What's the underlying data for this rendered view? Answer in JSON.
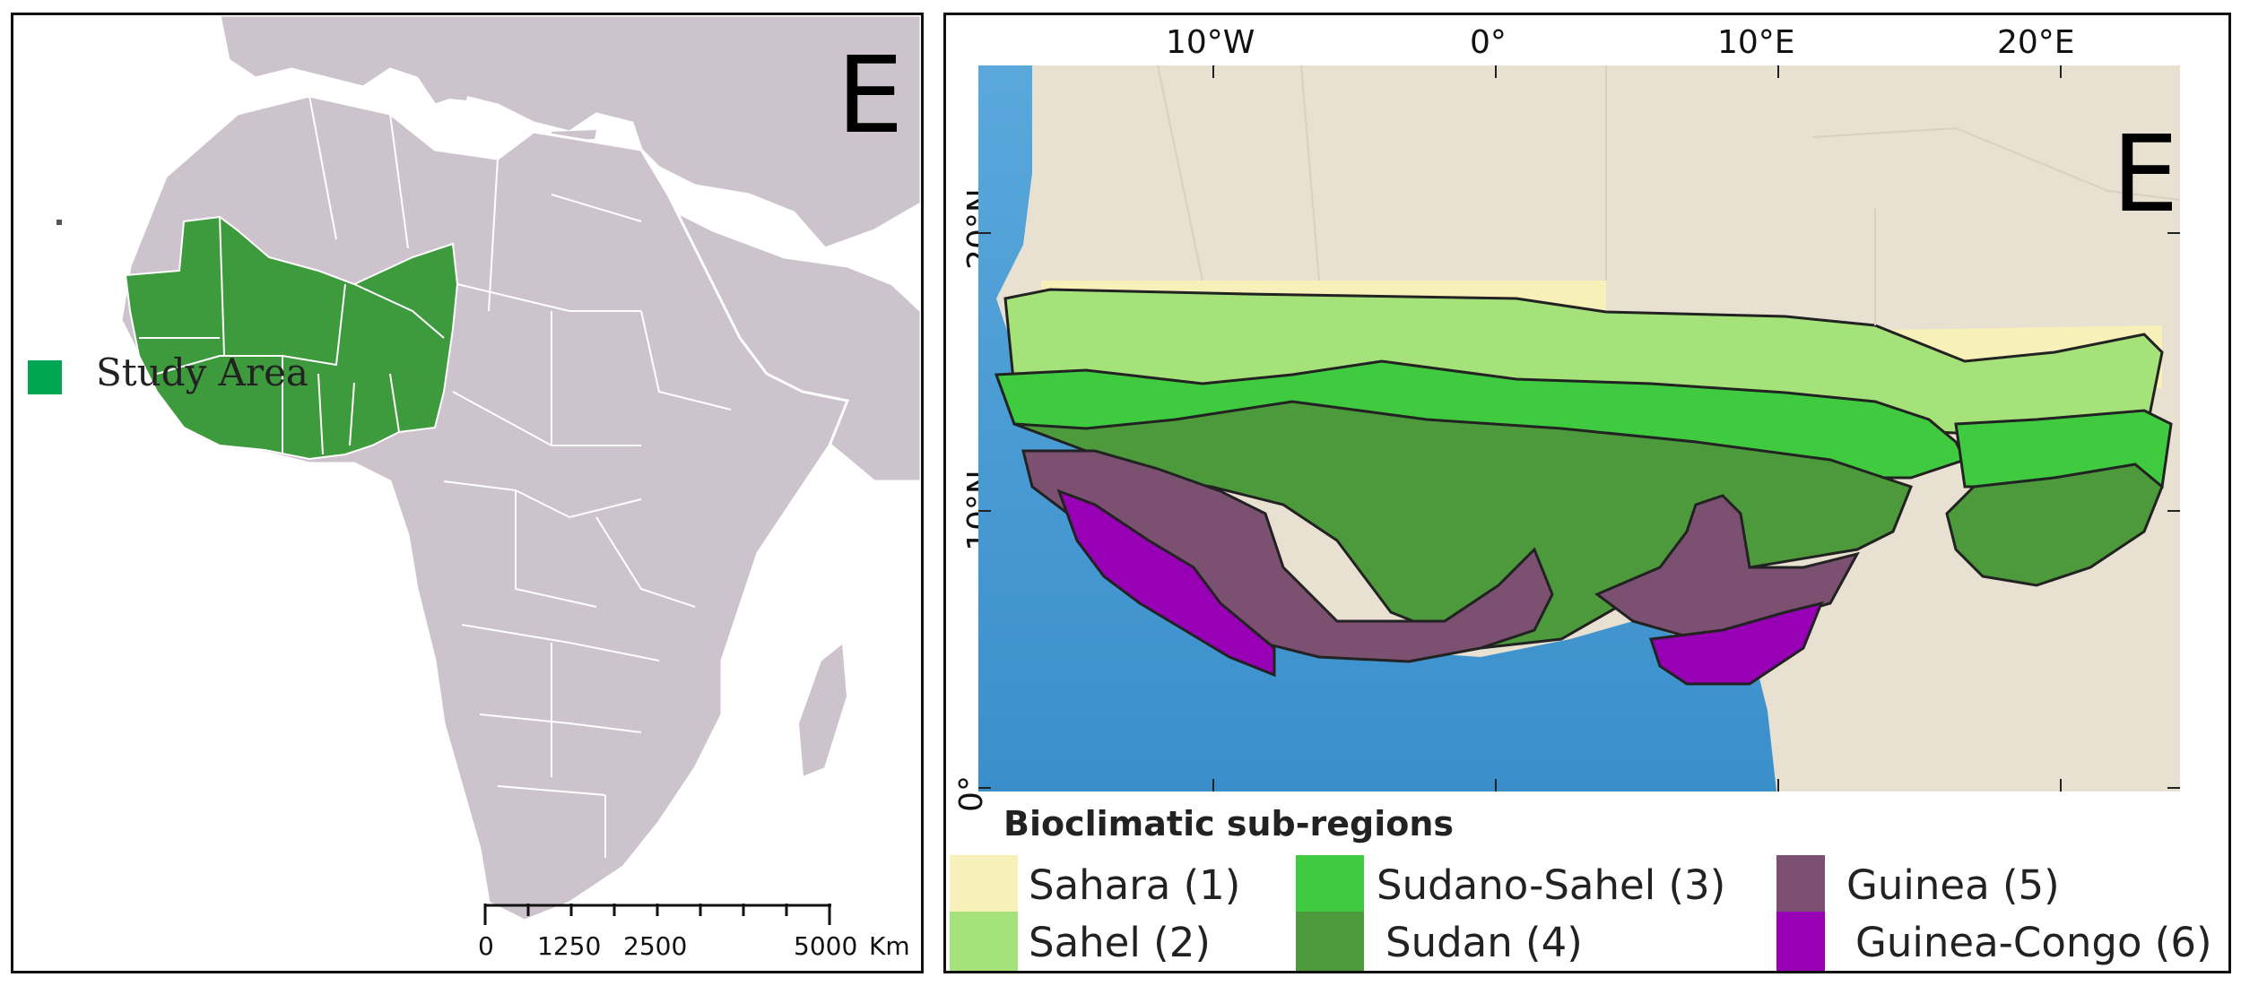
{
  "left_panel": {
    "corner_letter": "E",
    "legend": {
      "label": "Study Area",
      "color": "#00a651"
    },
    "scale_bar": {
      "ticks": [
        "0",
        "1250",
        "2500",
        "5000"
      ],
      "unit": "Km"
    },
    "colors": {
      "land": "#ccc3cc",
      "study_area": "#3d9a3d",
      "borders": "#ffffff"
    }
  },
  "right_panel": {
    "corner_letter": "E",
    "lon_labels": [
      "10°W",
      "0°",
      "10°E",
      "20°E"
    ],
    "lat_labels": [
      "20°N",
      "10°N",
      "0°"
    ],
    "legend_title": "Bioclimatic sub-regions",
    "regions": [
      {
        "label": "Sahara (1)",
        "color": "#f7f0b9"
      },
      {
        "label": "Sahel (2)",
        "color": "#a6e27a"
      },
      {
        "label": "Sudano-Sahel (3)",
        "color": "#3fca3f"
      },
      {
        "label": "Sudan (4)",
        "color": "#4d9a3c"
      },
      {
        "label": "Guinea (5)",
        "color": "#7b5070"
      },
      {
        "label": "Guinea-Congo (6)",
        "color": "#9700b5"
      }
    ],
    "colors": {
      "ocean": "#3a8fcb",
      "land": "#e8e0d0"
    }
  }
}
